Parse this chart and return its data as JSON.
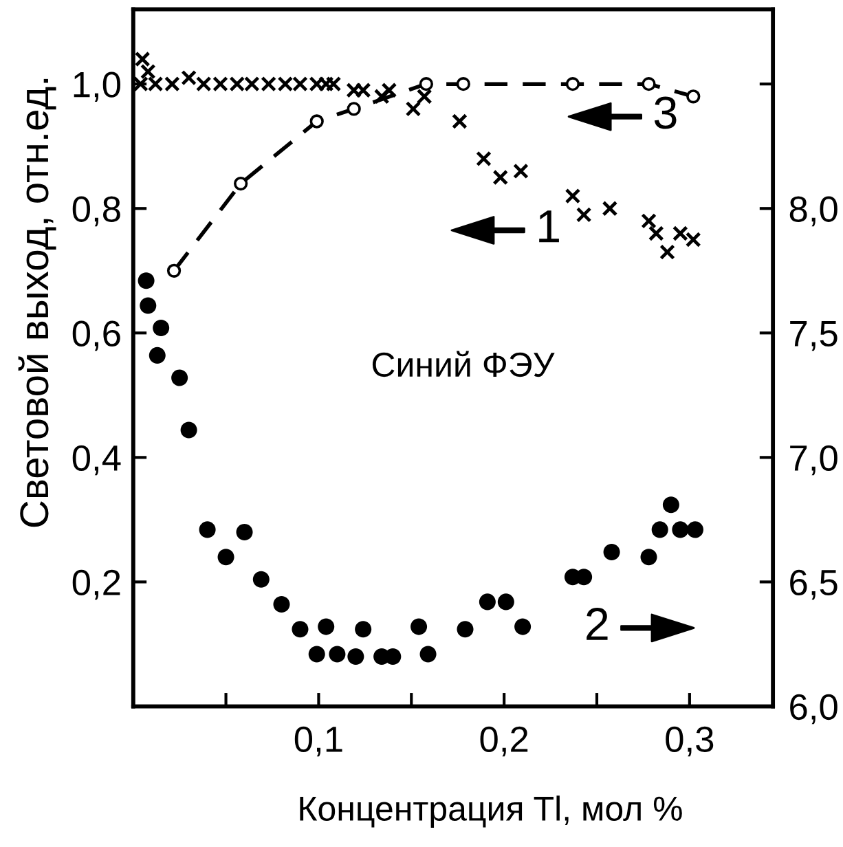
{
  "chart_data": {
    "type": "scatter",
    "xlabel": "Концентрация Tl, мол %",
    "ylabel": "Световой выход, отн.ед.",
    "xlim": [
      0,
      0.345
    ],
    "ylim": [
      0,
      1.12
    ],
    "y2lim": [
      6.0,
      8.8
    ],
    "xticks": [
      {
        "value": 0.05,
        "label": null
      },
      {
        "value": 0.1,
        "label": "0,1"
      },
      {
        "value": 0.15,
        "label": null
      },
      {
        "value": 0.2,
        "label": "0,2"
      },
      {
        "value": 0.25,
        "label": null
      },
      {
        "value": 0.3,
        "label": "0,3"
      }
    ],
    "yticks": [
      {
        "value": 0.2,
        "label": "0,2"
      },
      {
        "value": 0.4,
        "label": "0,4"
      },
      {
        "value": 0.6,
        "label": "0,6"
      },
      {
        "value": 0.8,
        "label": "0,8"
      },
      {
        "value": 1.0,
        "label": "1,0"
      }
    ],
    "y2ticks": [
      {
        "value": 6.0,
        "label": "6,0"
      },
      {
        "value": 6.5,
        "label": "6,5"
      },
      {
        "value": 7.0,
        "label": "7,0"
      },
      {
        "value": 7.5,
        "label": "7,5"
      },
      {
        "value": 8.0,
        "label": "8,0"
      },
      {
        "value": 8.5,
        "label": null
      }
    ],
    "series": [
      {
        "color": "#000000",
        "marker": "cross",
        "x": [
          0.004,
          0.005,
          0.008,
          0.012,
          0.021,
          0.03,
          0.038,
          0.047,
          0.056,
          0.064,
          0.073,
          0.082,
          0.09,
          0.099,
          0.104,
          0.108,
          0.119,
          0.124,
          0.134,
          0.138,
          0.151,
          0.157,
          0.176,
          0.189,
          0.198,
          0.209,
          0.237,
          0.243,
          0.257,
          0.278,
          0.282,
          0.288,
          0.295,
          0.302
        ],
        "values": [
          1.0,
          1.04,
          1.02,
          1.0,
          1.0,
          1.01,
          1.0,
          1.0,
          1.0,
          1.0,
          1.0,
          1.0,
          1.0,
          1.0,
          1.0,
          1.0,
          0.99,
          0.99,
          0.98,
          0.99,
          0.96,
          0.98,
          0.94,
          0.88,
          0.85,
          0.86,
          0.82,
          0.79,
          0.8,
          0.78,
          0.76,
          0.73,
          0.76,
          0.75
        ]
      },
      {
        "color": "#000000",
        "marker": "circle",
        "axis": "y2",
        "x": [
          0.007,
          0.008,
          0.013,
          0.015,
          0.025,
          0.03,
          0.04,
          0.05,
          0.06,
          0.069,
          0.08,
          0.09,
          0.099,
          0.104,
          0.11,
          0.12,
          0.124,
          0.134,
          0.14,
          0.154,
          0.159,
          0.179,
          0.191,
          0.201,
          0.21,
          0.237,
          0.243,
          0.258,
          0.278,
          0.284,
          0.29,
          0.295,
          0.303
        ],
        "values": [
          7.71,
          7.61,
          7.41,
          7.52,
          7.32,
          7.11,
          6.71,
          6.6,
          6.7,
          6.51,
          6.41,
          6.31,
          6.21,
          6.32,
          6.21,
          6.2,
          6.31,
          6.2,
          6.2,
          6.32,
          6.21,
          6.31,
          6.42,
          6.42,
          6.32,
          6.52,
          6.52,
          6.62,
          6.6,
          6.71,
          6.81,
          6.71,
          6.71
        ]
      },
      {
        "type": "line",
        "color": "#000000",
        "marker": "circle",
        "line_style": "dashed",
        "x": [
          0.022,
          0.058,
          0.099,
          0.119,
          0.158,
          0.178,
          0.237,
          0.278,
          0.302
        ],
        "values": [
          0.7,
          0.84,
          0.94,
          0.96,
          1.0,
          1.0,
          1.0,
          1.0,
          0.98
        ]
      }
    ],
    "annotations": [
      "3",
      "1",
      "Синий ФЭУ",
      "2"
    ]
  }
}
